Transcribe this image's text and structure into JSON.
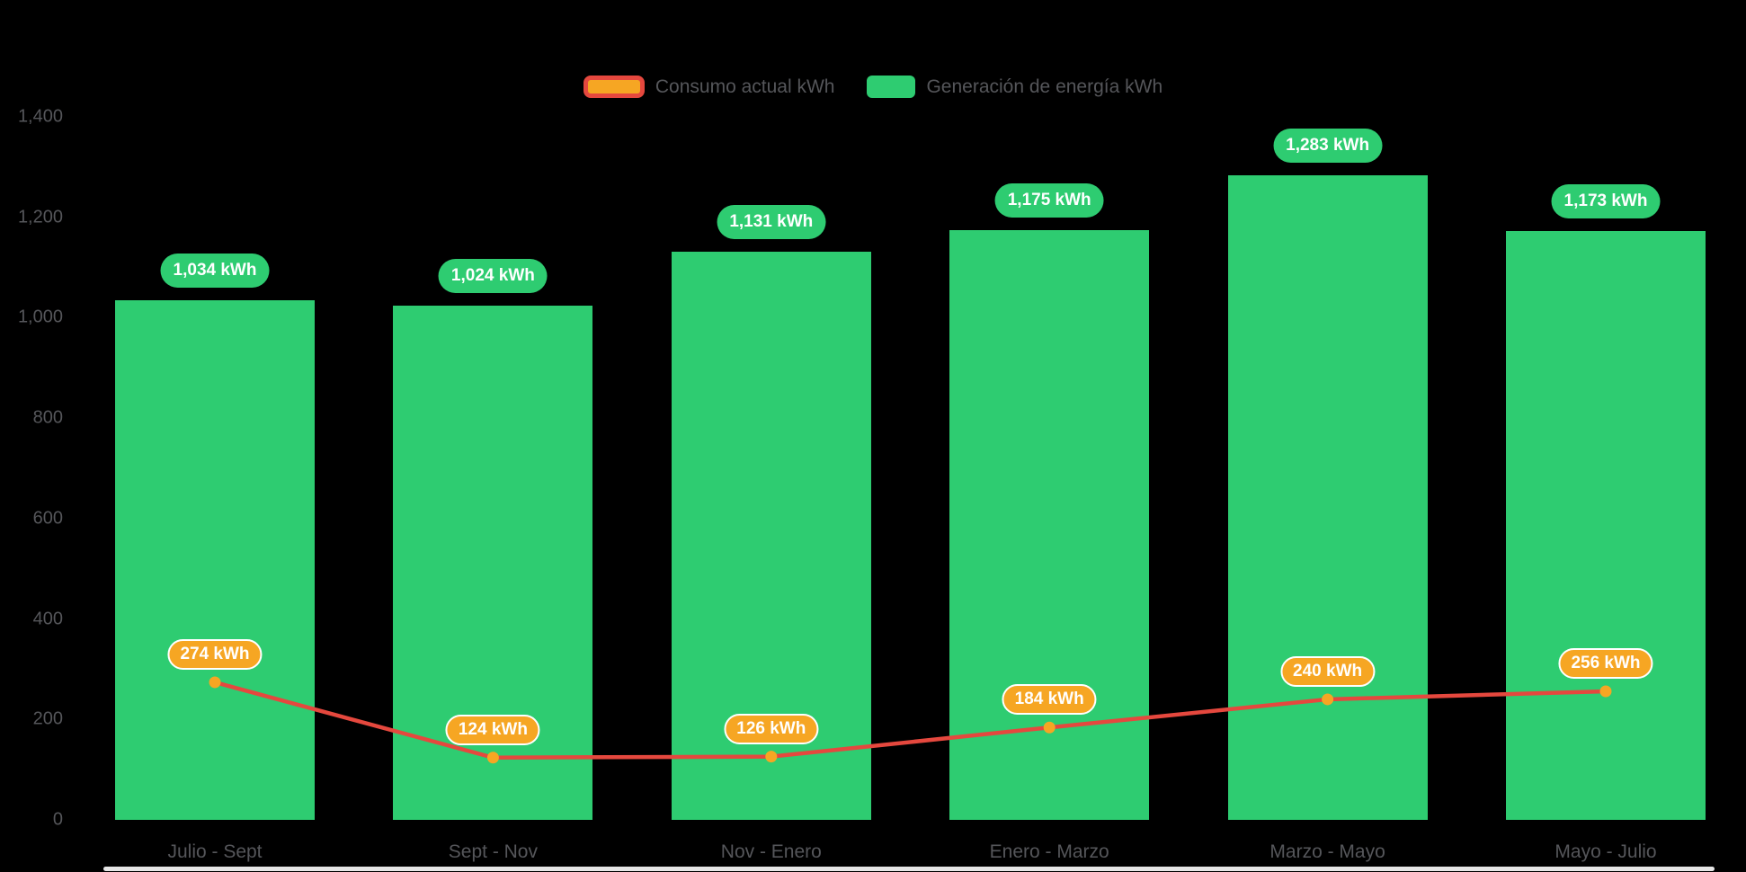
{
  "background": "#000000",
  "colors": {
    "background": "#000000",
    "bar": "#2ecc71",
    "bar_label_bg": "#2ecc71",
    "bar_label_text": "#ffffff",
    "line": "#e5483e",
    "point_fill": "#f6a623",
    "point_label_bg": "#f6a623",
    "point_label_border": "#ffffff",
    "point_label_text": "#ffffff",
    "axis_text": "#55565a",
    "legend_text": "#55565a"
  },
  "legend": {
    "consumo": {
      "label": "Consumo actual kWh"
    },
    "generacion": {
      "label": "Generación de energía kWh"
    }
  },
  "chart_data": {
    "type": "bar",
    "note": "grouped bar chart with overlaid line series",
    "categories": [
      "Julio - Sept",
      "Sept - Nov",
      "Nov - Enero",
      "Enero - Marzo",
      "Marzo - Mayo",
      "Mayo - Julio"
    ],
    "series": [
      {
        "name": "Generación de energía kWh",
        "type": "bar",
        "color": "#2ecc71",
        "values": [
          1034,
          1024,
          1131,
          1175,
          1283,
          1173
        ],
        "labels": [
          "1,034 kWh",
          "1,024 kWh",
          "1,131 kWh",
          "1,175 kWh",
          "1,283 kWh",
          "1,173 kWh"
        ]
      },
      {
        "name": "Consumo actual kWh",
        "type": "line",
        "color": "#e5483e",
        "point_color": "#f6a623",
        "values": [
          274,
          124,
          126,
          184,
          240,
          256
        ],
        "labels": [
          "274 kWh",
          "124 kWh",
          "126 kWh",
          "184 kWh",
          "240 kWh",
          "256 kWh"
        ]
      }
    ],
    "xlabel": "",
    "ylabel": "",
    "ylim": [
      0,
      1400
    ],
    "y_tick_values": [
      0,
      200,
      400,
      600,
      800,
      1000,
      1200,
      1400
    ],
    "y_tick_labels": [
      "0",
      "200",
      "400",
      "600",
      "800",
      "1,000",
      "1,200",
      "1,400"
    ],
    "grid": false,
    "legend_position": "top-center"
  }
}
